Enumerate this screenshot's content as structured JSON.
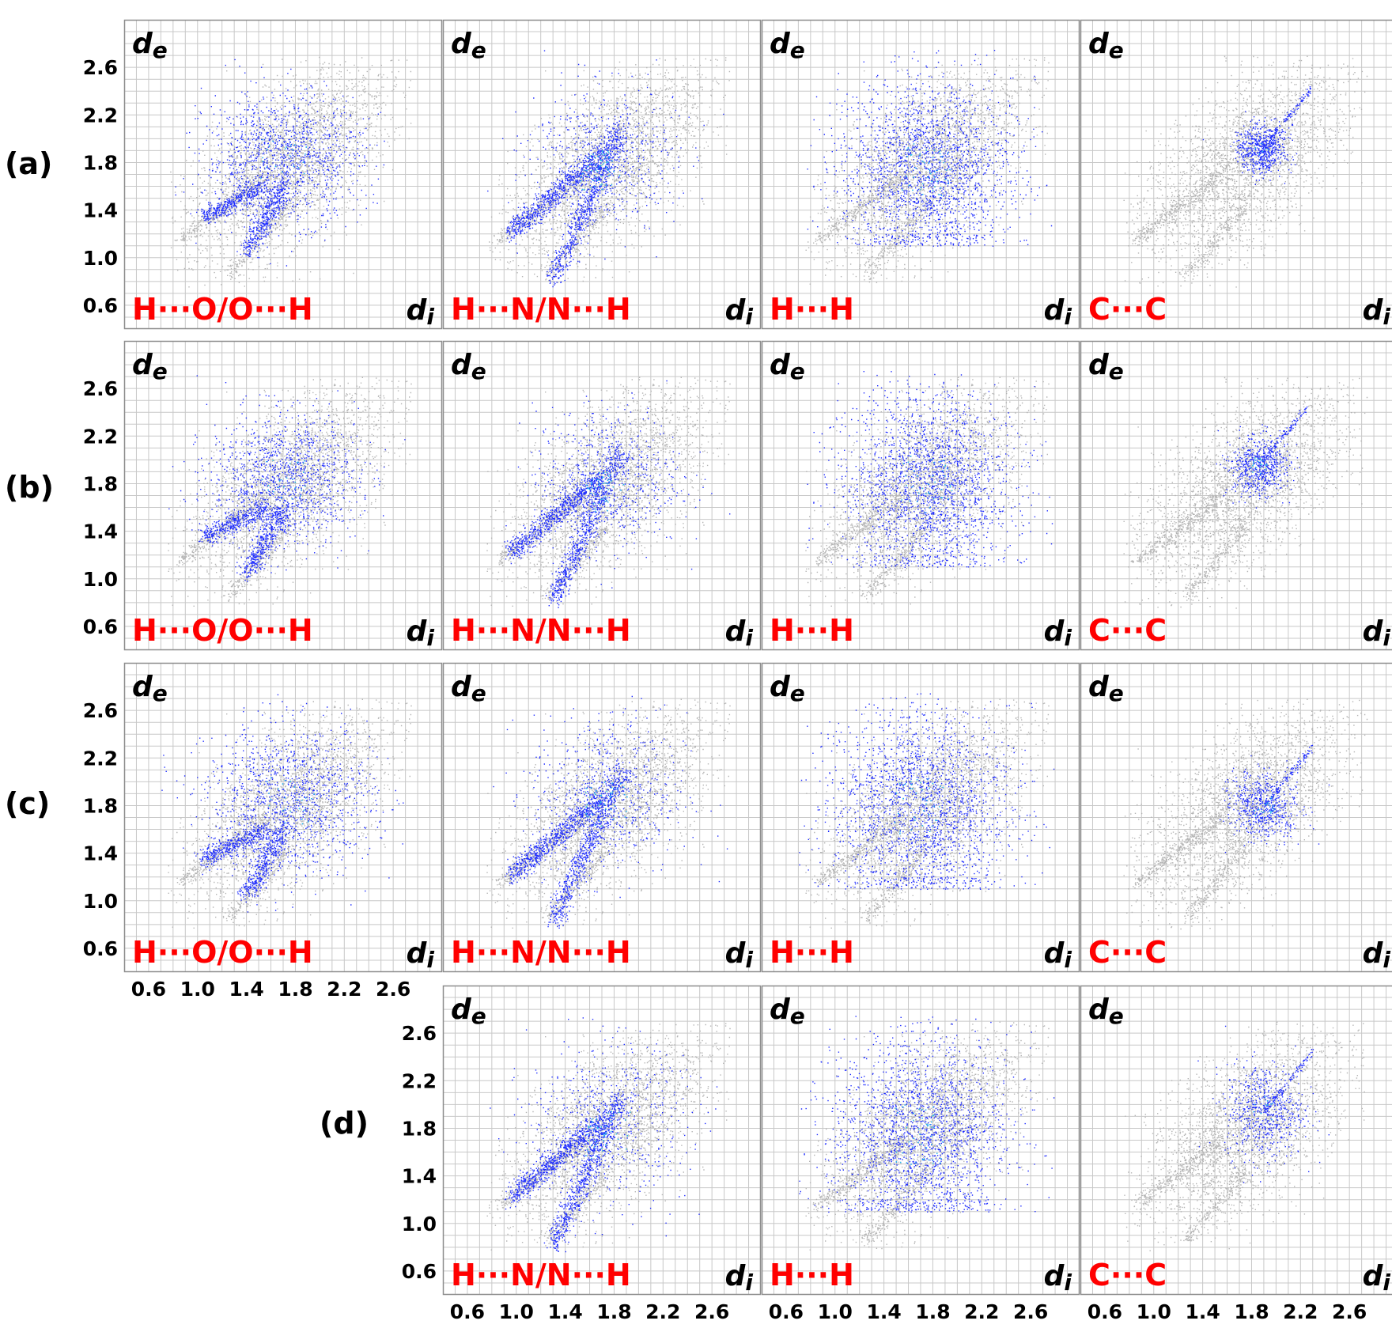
{
  "figure": {
    "row_labels": [
      "(a)",
      "(b)",
      "(c)",
      "(d)"
    ],
    "colors": {
      "grid": "#c8c8c8",
      "frame": "#8c8c8c",
      "gray_points": "#b4b4b4",
      "blue_points": "#1e2cff",
      "cyan_points": "#20c8e8",
      "green_points": "#3fd07a",
      "title_red": "#ff0000",
      "tick_text": "#000000"
    }
  },
  "chart_data": [
    {
      "type": "scatter",
      "row": "(a)",
      "title": "H···O/O···H",
      "xlabel": "di",
      "ylabel": "de",
      "xlim": [
        0.4,
        3.0
      ],
      "ylim": [
        0.4,
        3.0
      ],
      "yticks": [
        "0.6",
        "1.0",
        "1.4",
        "1.8",
        "2.2",
        "2.6"
      ],
      "xticks": [],
      "highlight": {
        "shape": "spikes",
        "center": [
          1.7,
          1.85
        ],
        "spread": [
          0.32,
          0.3
        ]
      }
    },
    {
      "type": "scatter",
      "row": "(a)",
      "title": "H···N/N···H",
      "xlabel": "di",
      "ylabel": "de",
      "xlim": [
        0.4,
        3.0
      ],
      "ylim": [
        0.4,
        3.0
      ],
      "yticks": [],
      "xticks": [],
      "highlight": {
        "shape": "wings",
        "center": [
          1.7,
          1.75
        ],
        "spread": [
          0.3,
          0.3
        ]
      }
    },
    {
      "type": "scatter",
      "row": "(a)",
      "title": "H···H",
      "xlabel": "di",
      "ylabel": "de",
      "xlim": [
        0.4,
        3.0
      ],
      "ylim": [
        0.4,
        3.0
      ],
      "yticks": [],
      "xticks": [],
      "highlight": {
        "shape": "blob",
        "center": [
          1.75,
          1.75
        ],
        "spread": [
          0.35,
          0.38
        ]
      }
    },
    {
      "type": "scatter",
      "row": "(a)",
      "title": "C···C",
      "xlabel": "di",
      "ylabel": "de",
      "xlim": [
        0.4,
        3.0
      ],
      "ylim": [
        0.4,
        3.0
      ],
      "yticks": [],
      "xticks": [],
      "highlight": {
        "shape": "small",
        "center": [
          1.88,
          1.92
        ],
        "spread": [
          0.1,
          0.1
        ]
      }
    },
    {
      "type": "scatter",
      "row": "(b)",
      "title": "H···O/O···H",
      "xlabel": "di",
      "ylabel": "de",
      "xlim": [
        0.4,
        3.0
      ],
      "ylim": [
        0.4,
        3.0
      ],
      "yticks": [
        "0.6",
        "1.0",
        "1.4",
        "1.8",
        "2.2",
        "2.6"
      ],
      "xticks": [],
      "highlight": {
        "shape": "spikes",
        "center": [
          1.7,
          1.85
        ],
        "spread": [
          0.3,
          0.3
        ]
      }
    },
    {
      "type": "scatter",
      "row": "(b)",
      "title": "H···N/N···H",
      "xlabel": "di",
      "ylabel": "de",
      "xlim": [
        0.4,
        3.0
      ],
      "ylim": [
        0.4,
        3.0
      ],
      "yticks": [],
      "xticks": [],
      "highlight": {
        "shape": "wings",
        "center": [
          1.75,
          1.75
        ],
        "spread": [
          0.3,
          0.3
        ]
      }
    },
    {
      "type": "scatter",
      "row": "(b)",
      "title": "H···H",
      "xlabel": "di",
      "ylabel": "de",
      "xlim": [
        0.4,
        3.0
      ],
      "ylim": [
        0.4,
        3.0
      ],
      "yticks": [],
      "xticks": [],
      "highlight": {
        "shape": "blob",
        "center": [
          1.75,
          1.8
        ],
        "spread": [
          0.35,
          0.4
        ]
      }
    },
    {
      "type": "scatter",
      "row": "(b)",
      "title": "C···C",
      "xlabel": "di",
      "ylabel": "de",
      "xlim": [
        0.4,
        3.0
      ],
      "ylim": [
        0.4,
        3.0
      ],
      "yticks": [],
      "xticks": [],
      "highlight": {
        "shape": "small",
        "center": [
          1.85,
          1.95
        ],
        "spread": [
          0.12,
          0.12
        ]
      }
    },
    {
      "type": "scatter",
      "row": "(c)",
      "title": "H···O/O···H",
      "xlabel": "di",
      "ylabel": "de",
      "xlim": [
        0.4,
        3.0
      ],
      "ylim": [
        0.4,
        3.0
      ],
      "yticks": [
        "0.6",
        "1.0",
        "1.4",
        "1.8",
        "2.2",
        "2.6"
      ],
      "xticks": [
        "0.6",
        "1.0",
        "1.4",
        "1.8",
        "2.2",
        "2.6"
      ],
      "highlight": {
        "shape": "spikes",
        "center": [
          1.75,
          1.85
        ],
        "spread": [
          0.34,
          0.35
        ]
      }
    },
    {
      "type": "scatter",
      "row": "(c)",
      "title": "H···N/N···H",
      "xlabel": "di",
      "ylabel": "de",
      "xlim": [
        0.4,
        3.0
      ],
      "ylim": [
        0.4,
        3.0
      ],
      "yticks": [],
      "xticks": [],
      "highlight": {
        "shape": "wings",
        "center": [
          1.75,
          1.8
        ],
        "spread": [
          0.32,
          0.34
        ]
      }
    },
    {
      "type": "scatter",
      "row": "(c)",
      "title": "H···H",
      "xlabel": "di",
      "ylabel": "de",
      "xlim": [
        0.4,
        3.0
      ],
      "ylim": [
        0.4,
        3.0
      ],
      "yticks": [],
      "xticks": [],
      "highlight": {
        "shape": "blob",
        "center": [
          1.7,
          1.8
        ],
        "spread": [
          0.36,
          0.42
        ]
      }
    },
    {
      "type": "scatter",
      "row": "(c)",
      "title": "C···C",
      "xlabel": "di",
      "ylabel": "de",
      "xlim": [
        0.4,
        3.0
      ],
      "ylim": [
        0.4,
        3.0
      ],
      "yticks": [],
      "xticks": [],
      "highlight": {
        "shape": "small",
        "center": [
          1.9,
          1.8
        ],
        "spread": [
          0.14,
          0.14
        ]
      }
    },
    {
      "type": "scatter",
      "row": "(d)",
      "title": "H···N/N···H",
      "xlabel": "di",
      "ylabel": "de",
      "xlim": [
        0.4,
        3.0
      ],
      "ylim": [
        0.4,
        3.0
      ],
      "yticks": [
        "0.6",
        "1.0",
        "1.4",
        "1.8",
        "2.2",
        "2.6"
      ],
      "xticks": [
        "0.6",
        "1.0",
        "1.4",
        "1.8",
        "2.2",
        "2.6"
      ],
      "highlight": {
        "shape": "wings",
        "center": [
          1.75,
          1.75
        ],
        "spread": [
          0.32,
          0.34
        ]
      }
    },
    {
      "type": "scatter",
      "row": "(d)",
      "title": "H···H",
      "xlabel": "di",
      "ylabel": "de",
      "xlim": [
        0.4,
        3.0
      ],
      "ylim": [
        0.4,
        3.0
      ],
      "yticks": [],
      "xticks": [
        "0.6",
        "1.0",
        "1.4",
        "1.8",
        "2.2",
        "2.6"
      ],
      "highlight": {
        "shape": "blob",
        "center": [
          1.7,
          1.75
        ],
        "spread": [
          0.36,
          0.42
        ]
      }
    },
    {
      "type": "scatter",
      "row": "(d)",
      "title": "C···C",
      "xlabel": "di",
      "ylabel": "de",
      "xlim": [
        0.4,
        3.0
      ],
      "ylim": [
        0.4,
        3.0
      ],
      "yticks": [],
      "xticks": [
        "0.6",
        "1.0",
        "1.4",
        "1.8",
        "2.2",
        "2.6"
      ],
      "highlight": {
        "shape": "small",
        "center": [
          1.9,
          1.95
        ],
        "spread": [
          0.16,
          0.2
        ]
      }
    }
  ]
}
